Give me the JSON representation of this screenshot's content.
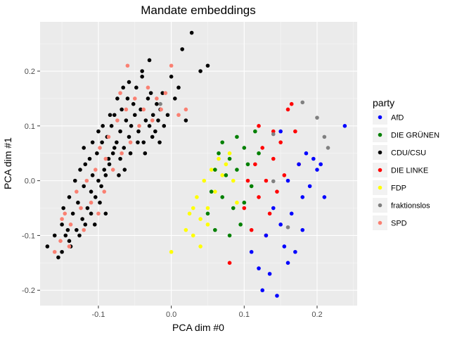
{
  "chart_data": {
    "type": "scatter",
    "title": "Mandate embeddings",
    "xlabel": "PCA dim #0",
    "ylabel": "PCA dim #1",
    "xlim": [
      -0.18,
      0.255
    ],
    "ylim": [
      -0.228,
      0.29
    ],
    "xticks": [
      -0.1,
      0.0,
      0.1,
      0.2
    ],
    "xtick_labels": [
      "-0.1",
      "0.0",
      "0.1",
      "0.2"
    ],
    "yticks": [
      -0.2,
      -0.1,
      0.0,
      0.1,
      0.2
    ],
    "ytick_labels": [
      "-0.2",
      "-0.1",
      "0.0",
      "0.1",
      "0.2"
    ],
    "grid": true,
    "background": "#ebebeb",
    "legend": {
      "title": "party",
      "position": "right",
      "entries": [
        {
          "name": "AfD",
          "color": "#0000ff"
        },
        {
          "name": "DIE GRÜNEN",
          "color": "#008000"
        },
        {
          "name": "CDU/CSU",
          "color": "#000000"
        },
        {
          "name": "DIE LINKE",
          "color": "#ff0000"
        },
        {
          "name": "FDP",
          "color": "#ffff00"
        },
        {
          "name": "fraktionslos",
          "color": "#808080"
        },
        {
          "name": "SPD",
          "color": "#fa8072"
        }
      ]
    },
    "series": [
      {
        "name": "CDU/CSU",
        "color": "#000000",
        "points": [
          [
            -0.17,
            -0.12
          ],
          [
            -0.16,
            -0.1
          ],
          [
            -0.155,
            -0.14
          ],
          [
            -0.15,
            -0.08
          ],
          [
            -0.148,
            -0.05
          ],
          [
            -0.145,
            -0.1
          ],
          [
            -0.14,
            -0.03
          ],
          [
            -0.14,
            -0.11
          ],
          [
            -0.135,
            -0.06
          ],
          [
            -0.132,
            0.0
          ],
          [
            -0.13,
            -0.09
          ],
          [
            -0.128,
            -0.04
          ],
          [
            -0.125,
            0.02
          ],
          [
            -0.122,
            -0.07
          ],
          [
            -0.12,
            -0.01
          ],
          [
            -0.118,
            0.03
          ],
          [
            -0.115,
            -0.05
          ],
          [
            -0.112,
            0.04
          ],
          [
            -0.11,
            -0.02
          ],
          [
            -0.108,
            0.01
          ],
          [
            -0.105,
            -0.08
          ],
          [
            -0.102,
            0.05
          ],
          [
            -0.1,
            0.0
          ],
          [
            -0.098,
            -0.04
          ],
          [
            -0.095,
            0.07
          ],
          [
            -0.092,
            0.02
          ],
          [
            -0.09,
            -0.06
          ],
          [
            -0.088,
            0.08
          ],
          [
            -0.085,
            0.03
          ],
          [
            -0.082,
            0.1
          ],
          [
            -0.08,
            0.05
          ],
          [
            -0.078,
            0.12
          ],
          [
            -0.075,
            0.07
          ],
          [
            -0.072,
            0.01
          ],
          [
            -0.07,
            0.09
          ],
          [
            -0.068,
            0.13
          ],
          [
            -0.065,
            0.06
          ],
          [
            -0.062,
            0.11
          ],
          [
            -0.06,
            0.15
          ],
          [
            -0.058,
            0.08
          ],
          [
            -0.055,
            0.1
          ],
          [
            -0.052,
            0.14
          ],
          [
            -0.05,
            0.12
          ],
          [
            -0.048,
            0.17
          ],
          [
            -0.045,
            0.09
          ],
          [
            -0.042,
            0.13
          ],
          [
            -0.04,
            0.19
          ],
          [
            -0.038,
            0.07
          ],
          [
            -0.035,
            0.11
          ],
          [
            -0.032,
            0.15
          ],
          [
            -0.03,
            0.1
          ],
          [
            -0.028,
            0.16
          ],
          [
            -0.025,
            0.12
          ],
          [
            -0.022,
            0.09
          ],
          [
            -0.02,
            0.14
          ],
          [
            -0.018,
            0.11
          ],
          [
            -0.015,
            0.13
          ],
          [
            -0.012,
            0.16
          ],
          [
            -0.01,
            0.1
          ],
          [
            -0.005,
            0.12
          ],
          [
            0.0,
            0.19
          ],
          [
            0.005,
            0.15
          ],
          [
            0.01,
            0.17
          ],
          [
            0.015,
            0.24
          ],
          [
            0.02,
            0.11
          ],
          [
            0.028,
            0.27
          ],
          [
            0.04,
            0.2
          ],
          [
            0.05,
            0.21
          ],
          [
            -0.15,
            -0.13
          ],
          [
            -0.142,
            -0.09
          ],
          [
            -0.138,
            -0.12
          ],
          [
            -0.126,
            -0.1
          ],
          [
            -0.118,
            -0.08
          ],
          [
            -0.11,
            -0.06
          ],
          [
            -0.104,
            -0.03
          ],
          [
            -0.096,
            -0.01
          ],
          [
            -0.09,
            0.01
          ],
          [
            -0.086,
            0.04
          ],
          [
            -0.078,
            0.06
          ],
          [
            -0.07,
            0.04
          ],
          [
            -0.064,
            0.02
          ],
          [
            -0.056,
            0.05
          ],
          [
            -0.046,
            0.07
          ],
          [
            -0.036,
            0.05
          ],
          [
            -0.026,
            0.08
          ],
          [
            -0.016,
            0.07
          ],
          [
            -0.108,
            0.07
          ],
          [
            -0.12,
            0.06
          ],
          [
            -0.1,
            0.09
          ],
          [
            -0.094,
            0.1
          ],
          [
            -0.084,
            0.12
          ],
          [
            -0.074,
            0.15
          ],
          [
            -0.066,
            0.17
          ],
          [
            -0.058,
            0.18
          ],
          [
            -0.04,
            0.2
          ],
          [
            -0.03,
            0.22
          ]
        ]
      },
      {
        "name": "SPD",
        "color": "#fa8072",
        "points": [
          [
            -0.16,
            -0.13
          ],
          [
            -0.152,
            -0.11
          ],
          [
            -0.146,
            -0.06
          ],
          [
            -0.138,
            -0.08
          ],
          [
            -0.13,
            -0.02
          ],
          [
            -0.124,
            -0.05
          ],
          [
            -0.116,
            0.0
          ],
          [
            -0.11,
            -0.04
          ],
          [
            -0.104,
            0.02
          ],
          [
            -0.098,
            0.06
          ],
          [
            -0.092,
            -0.02
          ],
          [
            -0.086,
            0.08
          ],
          [
            -0.08,
            0.02
          ],
          [
            -0.074,
            0.11
          ],
          [
            -0.068,
            0.05
          ],
          [
            -0.062,
            0.13
          ],
          [
            -0.056,
            0.07
          ],
          [
            -0.05,
            0.15
          ],
          [
            -0.044,
            0.1
          ],
          [
            -0.038,
            0.13
          ],
          [
            -0.032,
            0.17
          ],
          [
            -0.026,
            0.11
          ],
          [
            -0.02,
            0.15
          ],
          [
            -0.014,
            0.13
          ],
          [
            -0.008,
            0.16
          ],
          [
            0.0,
            0.21
          ],
          [
            0.01,
            0.12
          ],
          [
            0.02,
            0.13
          ],
          [
            -0.06,
            0.21
          ],
          [
            -0.07,
            0.16
          ],
          [
            -0.09,
            0.04
          ],
          [
            -0.1,
            -0.06
          ],
          [
            -0.12,
            -0.09
          ],
          [
            -0.14,
            -0.12
          ],
          [
            -0.15,
            -0.07
          ]
        ]
      },
      {
        "name": "FDP",
        "color": "#ffff00",
        "points": [
          [
            0.0,
            -0.13
          ],
          [
            0.02,
            -0.09
          ],
          [
            0.025,
            -0.06
          ],
          [
            0.03,
            -0.1
          ],
          [
            0.035,
            -0.03
          ],
          [
            0.04,
            -0.07
          ],
          [
            0.045,
            0.0
          ],
          [
            0.05,
            -0.05
          ],
          [
            0.055,
            0.02
          ],
          [
            0.06,
            -0.02
          ],
          [
            0.065,
            0.04
          ],
          [
            0.07,
            0.01
          ],
          [
            0.075,
            0.03
          ],
          [
            0.08,
            0.05
          ],
          [
            0.085,
            0.0
          ],
          [
            0.09,
            -0.04
          ],
          [
            0.04,
            -0.12
          ],
          [
            0.05,
            -0.08
          ],
          [
            0.03,
            -0.05
          ],
          [
            0.06,
            0.02
          ]
        ]
      },
      {
        "name": "DIE GRÜNEN",
        "color": "#008000",
        "points": [
          [
            0.05,
            -0.06
          ],
          [
            0.055,
            -0.02
          ],
          [
            0.06,
            0.02
          ],
          [
            0.065,
            0.05
          ],
          [
            0.07,
            -0.03
          ],
          [
            0.075,
            0.01
          ],
          [
            0.08,
            0.04
          ],
          [
            0.085,
            -0.05
          ],
          [
            0.09,
            0.02
          ],
          [
            0.095,
            -0.08
          ],
          [
            0.1,
            0.06
          ],
          [
            0.105,
            0.03
          ],
          [
            0.11,
            -0.01
          ],
          [
            0.115,
            0.09
          ],
          [
            0.12,
            0.05
          ],
          [
            0.08,
            -0.1
          ],
          [
            0.07,
            0.07
          ],
          [
            0.06,
            -0.09
          ],
          [
            0.1,
            -0.04
          ],
          [
            0.09,
            0.08
          ]
        ]
      },
      {
        "name": "DIE LINKE",
        "color": "#ff0000",
        "points": [
          [
            0.1,
            -0.05
          ],
          [
            0.105,
            0.0
          ],
          [
            0.11,
            -0.09
          ],
          [
            0.115,
            0.03
          ],
          [
            0.12,
            -0.03
          ],
          [
            0.125,
            0.06
          ],
          [
            0.13,
            0.0
          ],
          [
            0.135,
            -0.06
          ],
          [
            0.14,
            0.04
          ],
          [
            0.145,
            -0.02
          ],
          [
            0.15,
            0.07
          ],
          [
            0.155,
            0.01
          ],
          [
            0.16,
            0.13
          ],
          [
            0.165,
            0.14
          ],
          [
            0.17,
            0.09
          ],
          [
            0.175,
            0.03
          ],
          [
            0.08,
            -0.15
          ],
          [
            0.12,
            0.1
          ],
          [
            0.14,
            0.09
          ],
          [
            0.13,
            -0.1
          ]
        ]
      },
      {
        "name": "AfD",
        "color": "#0000ff",
        "points": [
          [
            0.11,
            -0.13
          ],
          [
            0.12,
            -0.16
          ],
          [
            0.125,
            -0.2
          ],
          [
            0.13,
            -0.1
          ],
          [
            0.135,
            -0.17
          ],
          [
            0.14,
            -0.05
          ],
          [
            0.145,
            -0.21
          ],
          [
            0.15,
            -0.08
          ],
          [
            0.155,
            -0.12
          ],
          [
            0.16,
            0.0
          ],
          [
            0.165,
            -0.06
          ],
          [
            0.17,
            -0.13
          ],
          [
            0.175,
            0.03
          ],
          [
            0.18,
            -0.03
          ],
          [
            0.185,
            0.05
          ],
          [
            0.19,
            -0.01
          ],
          [
            0.195,
            0.04
          ],
          [
            0.2,
            0.02
          ],
          [
            0.205,
            0.03
          ],
          [
            0.21,
            -0.03
          ],
          [
            0.238,
            0.1
          ],
          [
            0.15,
            0.09
          ],
          [
            0.18,
            -0.09
          ],
          [
            0.16,
            -0.15
          ]
        ]
      },
      {
        "name": "fraktionslos",
        "color": "#808080",
        "points": [
          [
            -0.015,
            0.14
          ],
          [
            0.14,
            0.085
          ],
          [
            0.18,
            0.143
          ],
          [
            0.2,
            0.115
          ],
          [
            0.21,
            0.08
          ],
          [
            0.215,
            0.06
          ],
          [
            0.14,
            -0.001
          ],
          [
            0.16,
            -0.085
          ]
        ]
      }
    ]
  }
}
